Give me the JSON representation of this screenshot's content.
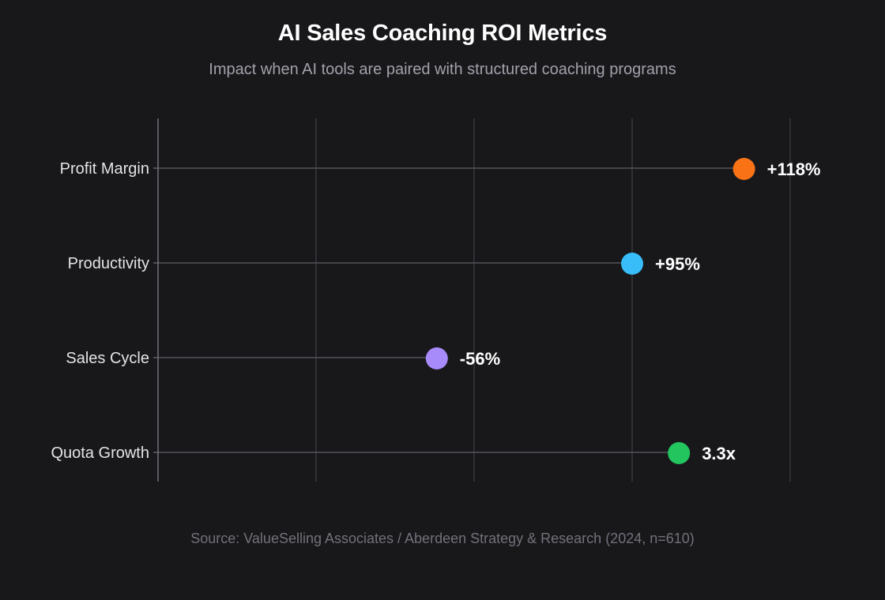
{
  "header": {
    "title": "AI Sales Coaching ROI Metrics",
    "subtitle": "Impact when AI tools are paired with structured coaching programs"
  },
  "footer": {
    "source": "Source: ValueSelling Associates / Aberdeen Strategy & Research (2024, n=610)"
  },
  "chart_data": {
    "type": "scatter",
    "title": "AI Sales Coaching ROI Metrics",
    "subtitle": "Impact when AI tools are paired with structured coaching programs",
    "xlabel": "",
    "ylabel": "",
    "xlim": [
      0,
      100
    ],
    "x_gridlines": [
      0,
      25,
      50,
      75,
      100
    ],
    "grid": true,
    "categories": [
      "Profit Margin",
      "Productivity",
      "Sales Cycle",
      "Quota Growth"
    ],
    "points": [
      {
        "category": "Profit Margin",
        "value": 92.7,
        "label": "+118%",
        "color": "#f97316"
      },
      {
        "category": "Productivity",
        "value": 75,
        "label": "+95%",
        "color": "#38bdf8"
      },
      {
        "category": "Sales Cycle",
        "value": 44.1,
        "label": "-56%",
        "color": "#a78bfa"
      },
      {
        "category": "Quota Growth",
        "value": 82.4,
        "label": "3.3x",
        "color": "#22c55e"
      }
    ]
  },
  "colors": {
    "background": "#18181b",
    "grid": "#3f3f46",
    "axis": "#71717a",
    "stem": "#52525b"
  }
}
